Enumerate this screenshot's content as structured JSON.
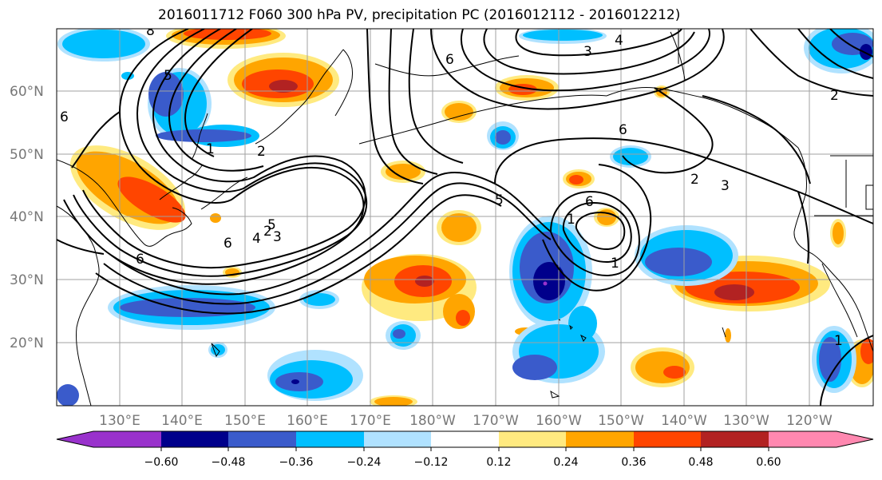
{
  "title": "2016011712 F060 300 hPa PV, precipitation PC (2016012112 - 2016012212)",
  "lat_labels": [
    "60°N",
    "50°N",
    "40°N",
    "30°N",
    "20°N"
  ],
  "lon_labels": [
    "130°E",
    "140°E",
    "150°E",
    "160°E",
    "170°E",
    "180°W",
    "170°W",
    "160°W",
    "150°W",
    "140°W",
    "130°W",
    "120°W"
  ],
  "colorbar": {
    "tick_labels": [
      "−0.60",
      "−0.48",
      "−0.36",
      "−0.24",
      "−0.12",
      "0.12",
      "0.24",
      "0.36",
      "0.48",
      "0.60"
    ],
    "colors": [
      "#9932CC",
      "#00008B",
      "#3A5BCB",
      "#00BFFF",
      "#B0E2FF",
      "#FFFFFF",
      "#FFEA80",
      "#FFA500",
      "#FF4500",
      "#B22222",
      "#FF88B0"
    ]
  },
  "contour_labels": [
    "4",
    "3",
    "6",
    "5",
    "6",
    "1",
    "2",
    "5",
    "6",
    "4",
    "2",
    "3",
    "5",
    "6",
    "1",
    "6",
    "1",
    "2",
    "3",
    "2",
    "1",
    "6",
    "8"
  ]
}
